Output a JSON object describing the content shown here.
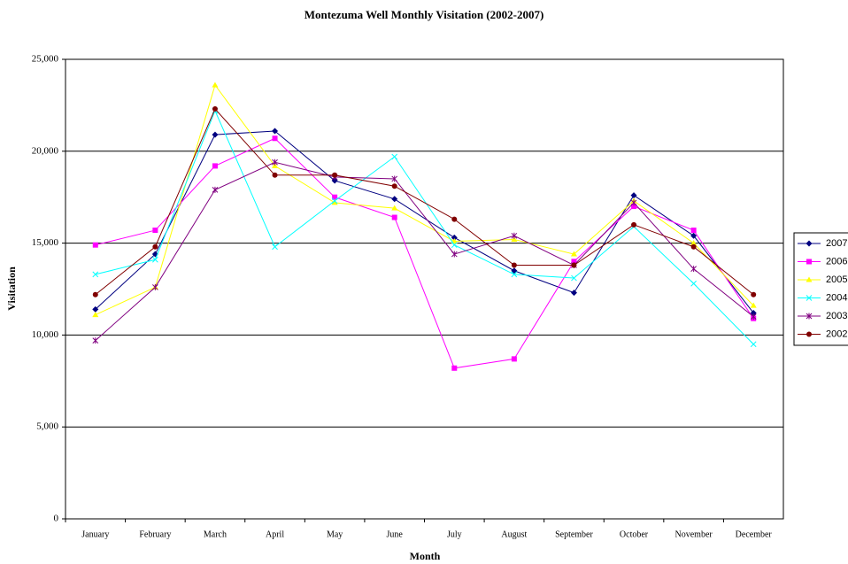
{
  "chart_data": {
    "type": "line",
    "title": "Montezuma Well Monthly Visitation (2002-2007)",
    "x_label": "Month",
    "y_label": "Visitation",
    "categories": [
      "January",
      "February",
      "March",
      "April",
      "May",
      "June",
      "July",
      "August",
      "September",
      "October",
      "November",
      "December"
    ],
    "series": [
      {
        "name": "2007",
        "color": "#000080",
        "marker": "diamond",
        "values": [
          11400,
          14400,
          20900,
          21100,
          18400,
          17400,
          15300,
          13500,
          12300,
          17600,
          15400,
          11200
        ]
      },
      {
        "name": "2006",
        "color": "#ff00ff",
        "marker": "square",
        "values": [
          14900,
          15700,
          19200,
          20700,
          17500,
          16400,
          8200,
          8700,
          14000,
          17000,
          15700,
          10900
        ]
      },
      {
        "name": "2005",
        "color": "#ffff00",
        "marker": "triangle",
        "values": [
          11100,
          12600,
          23600,
          19200,
          17200,
          16900,
          15100,
          15200,
          14400,
          17300,
          15000,
          11600
        ]
      },
      {
        "name": "2004",
        "color": "#00ffff",
        "marker": "x",
        "values": [
          13300,
          14100,
          22200,
          14800,
          17300,
          19700,
          14900,
          13300,
          13100,
          15900,
          12800,
          9500
        ]
      },
      {
        "name": "2003",
        "color": "#800080",
        "marker": "star",
        "values": [
          9700,
          12600,
          17900,
          19400,
          18600,
          18500,
          14400,
          15400,
          13800,
          17200,
          13600,
          11000
        ]
      },
      {
        "name": "2002",
        "color": "#800000",
        "marker": "circle",
        "values": [
          12200,
          14800,
          22300,
          18700,
          18700,
          18100,
          16300,
          13800,
          13800,
          16000,
          14800,
          12200
        ]
      }
    ],
    "ylim": [
      0,
      25000
    ],
    "yticks": [
      0,
      {
        "value": 5000,
        "label": "5,000"
      },
      {
        "value": 10000,
        "label": "10,000"
      },
      {
        "value": 15000,
        "label": "15,000"
      },
      {
        "value": 20000,
        "label": "20,000"
      },
      {
        "value": 25000,
        "label": "25,000"
      }
    ],
    "grid": true,
    "legend": "right"
  }
}
